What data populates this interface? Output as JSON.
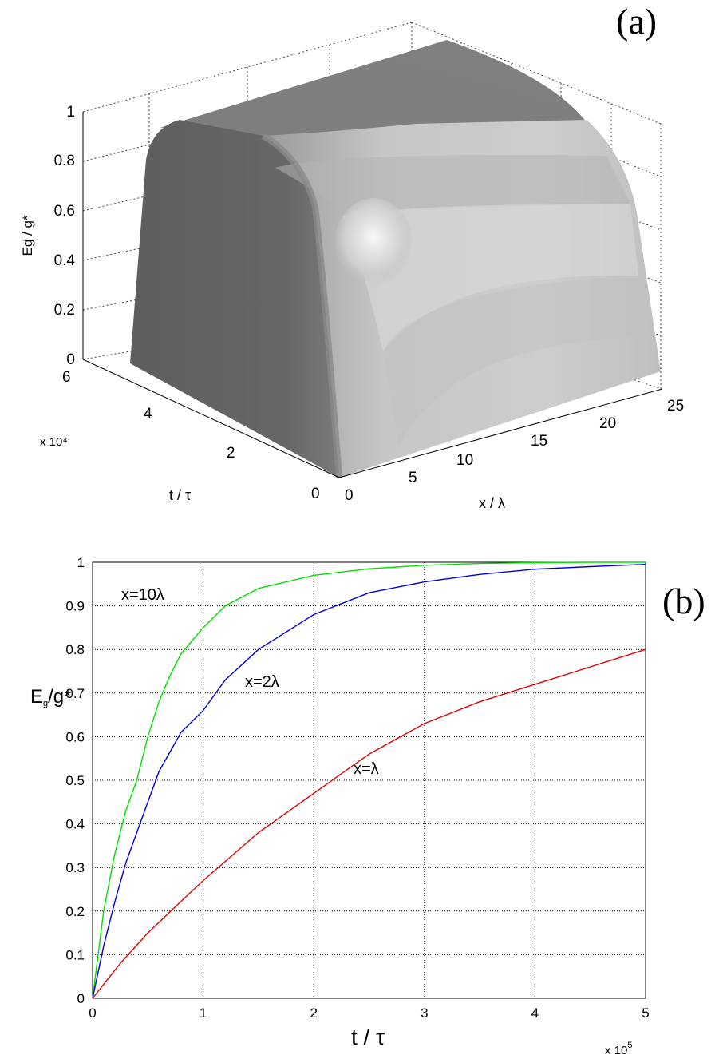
{
  "chart_data": [
    {
      "type": "surface",
      "panel_label": "(a)",
      "zlabel": "Eg / g*",
      "xlabel": "x / λ",
      "ylabel": "t / τ",
      "y_multiplier": "x 10⁴",
      "x_ticks": [
        "0",
        "5",
        "10",
        "15",
        "20",
        "25"
      ],
      "y_ticks": [
        "0",
        "2",
        "4",
        "6"
      ],
      "z_ticks": [
        "0",
        "0.2",
        "0.4",
        "0.6",
        "0.8",
        "1"
      ],
      "xlim": [
        0,
        25
      ],
      "ylim": [
        0,
        60000
      ],
      "zlim": [
        0,
        1
      ],
      "grid": true,
      "colormap": "gray",
      "surface": {
        "description_z_max": 1,
        "z_saturates_near": 1
      }
    },
    {
      "type": "line",
      "panel_label": "(b)",
      "xlabel": "t / τ",
      "ylabel": "Eg/g*",
      "x_multiplier": "x 10⁵",
      "xlim": [
        0,
        5
      ],
      "ylim": [
        0,
        1
      ],
      "x_ticks": [
        "0",
        "1",
        "2",
        "3",
        "4",
        "5"
      ],
      "y_ticks": [
        "0",
        "0.1",
        "0.2",
        "0.3",
        "0.4",
        "0.5",
        "0.6",
        "0.7",
        "0.8",
        "0.9",
        "1"
      ],
      "grid": true,
      "series": [
        {
          "name": "x=10λ",
          "color": "#00e000",
          "x": [
            0,
            0.1,
            0.2,
            0.3,
            0.4,
            0.5,
            0.6,
            0.7,
            0.8,
            1.0,
            1.2,
            1.5,
            2.0,
            2.5,
            3.0,
            3.5,
            4.0,
            4.5,
            5.0
          ],
          "y": [
            0,
            0.2,
            0.33,
            0.43,
            0.5,
            0.6,
            0.68,
            0.74,
            0.79,
            0.85,
            0.9,
            0.94,
            0.97,
            0.985,
            0.993,
            0.997,
            0.999,
            1.0,
            1.0
          ]
        },
        {
          "name": "x=2λ",
          "color": "#0000e0",
          "x": [
            0,
            0.1,
            0.2,
            0.3,
            0.4,
            0.5,
            0.6,
            0.8,
            1.0,
            1.2,
            1.5,
            2.0,
            2.5,
            3.0,
            3.5,
            4.0,
            4.5,
            5.0
          ],
          "y": [
            0,
            0.12,
            0.22,
            0.31,
            0.38,
            0.45,
            0.52,
            0.61,
            0.66,
            0.73,
            0.8,
            0.88,
            0.93,
            0.955,
            0.972,
            0.984,
            0.99,
            0.995
          ]
        },
        {
          "name": "x=λ",
          "color": "#e00000",
          "x": [
            0,
            0.25,
            0.5,
            0.75,
            1.0,
            1.5,
            2.0,
            2.5,
            3.0,
            3.5,
            4.0,
            4.5,
            5.0
          ],
          "y": [
            0,
            0.08,
            0.15,
            0.21,
            0.27,
            0.38,
            0.47,
            0.56,
            0.63,
            0.68,
            0.72,
            0.76,
            0.8
          ]
        }
      ]
    }
  ]
}
